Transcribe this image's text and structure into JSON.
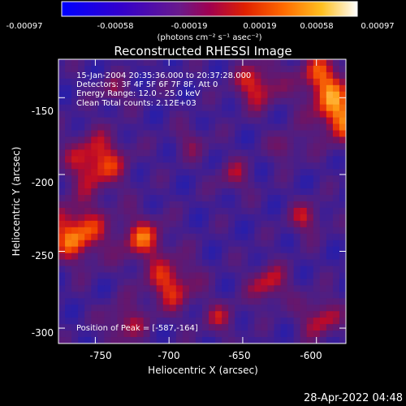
{
  "colorbar": {
    "tick_labels": [
      "-0.00097",
      "-0.00058",
      "-0.00019",
      "0.00019",
      "0.00058",
      "0.00097"
    ],
    "unit_label": "(photons cm⁻² s⁻¹ asec⁻²)",
    "range": [
      -0.00097,
      0.00097
    ]
  },
  "title": "Reconstructed RHESSI Image",
  "annotation": {
    "line1": "15-Jan-2004 20:35:36.000 to 20:37:28.000",
    "line2": "Detectors: 3F 4F 5F 6F 7F 8F, Att 0",
    "line3": "Energy Range: 12.0 - 25.0 keV",
    "line4": "Clean     Total counts: 2.12E+03",
    "peak": "Position of Peak = [-587,-164]"
  },
  "axes": {
    "xlabel": "Heliocentric X (arcsec)",
    "ylabel": "Heliocentric Y (arcsec)",
    "xticks": [
      "-750",
      "-700",
      "-650",
      "-600"
    ],
    "yticks": [
      "-150",
      "-200",
      "-250",
      "-300"
    ]
  },
  "footer_date": "28-Apr-2022 04:48",
  "colors": {
    "background": "#000000",
    "text": "#ffffff"
  },
  "chart_data": {
    "type": "heatmap",
    "title": "Reconstructed RHESSI Image",
    "xlabel": "Heliocentric X (arcsec)",
    "ylabel": "Heliocentric Y (arcsec)",
    "xlim": [
      -775,
      -580
    ],
    "ylim": [
      -310,
      -125
    ],
    "xticks": [
      -750,
      -700,
      -650,
      -600
    ],
    "yticks": [
      -150,
      -200,
      -250,
      -300
    ],
    "colorbar_range": [
      -0.00097,
      0.00097
    ],
    "peak": [
      -587,
      -164
    ],
    "colormap": "blue-purple-red-yellow-white"
  }
}
